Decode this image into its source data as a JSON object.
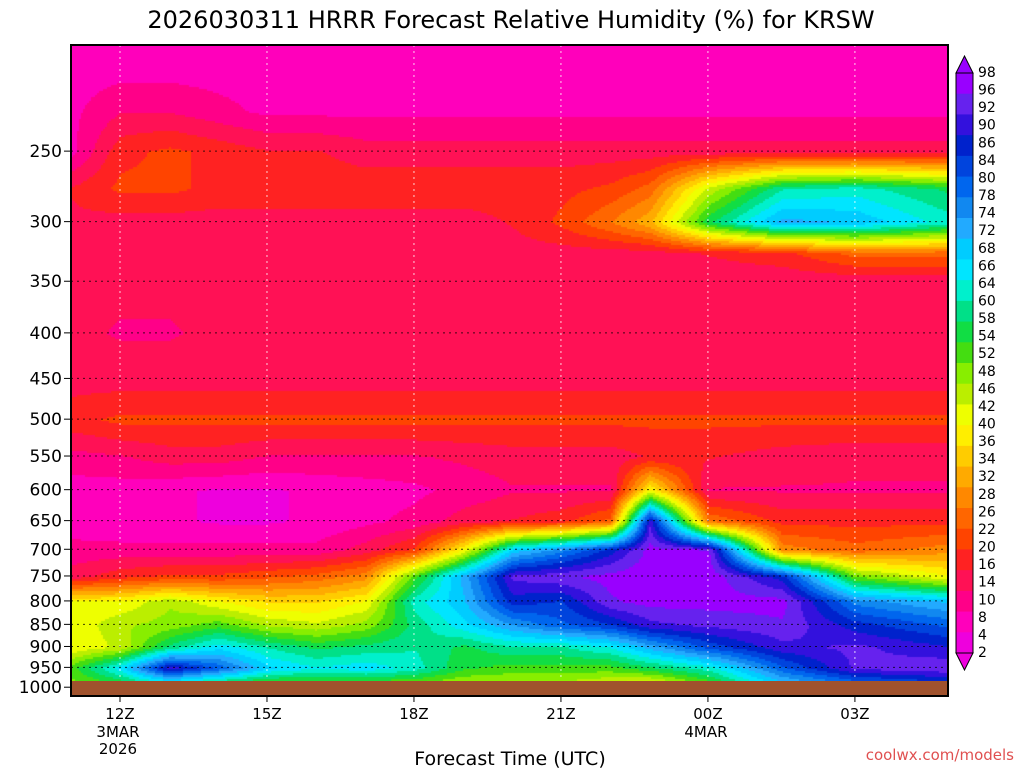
{
  "chart_data": {
    "type": "heatmap",
    "title": "2026030311 HRRR Forecast Relative Humidity (%) for KRSW",
    "xlabel": "Forecast Time (UTC)",
    "ylabel": "",
    "watermark": "coolwx.com/models",
    "x_ticks": [
      {
        "label": "12Z",
        "sub": [
          "3MAR",
          "2026"
        ],
        "hour": 12
      },
      {
        "label": "15Z",
        "sub": [],
        "hour": 15
      },
      {
        "label": "18Z",
        "sub": [],
        "hour": 18
      },
      {
        "label": "21Z",
        "sub": [],
        "hour": 21
      },
      {
        "label": "00Z",
        "sub": [
          "4MAR"
        ],
        "hour": 24
      },
      {
        "label": "03Z",
        "sub": [],
        "hour": 27
      }
    ],
    "xlim_hours": [
      11,
      28.9
    ],
    "y_ticks": [
      "250",
      "300",
      "350",
      "400",
      "450",
      "500",
      "550",
      "600",
      "650",
      "700",
      "750",
      "800",
      "850",
      "900",
      "950",
      "1000"
    ],
    "ylim_hpa": [
      1023,
      190
    ],
    "colorbar": {
      "levels": [
        "98",
        "96",
        "92",
        "90",
        "86",
        "84",
        "80",
        "78",
        "74",
        "72",
        "68",
        "66",
        "64",
        "60",
        "58",
        "54",
        "52",
        "48",
        "46",
        "42",
        "40",
        "36",
        "34",
        "32",
        "28",
        "26",
        "22",
        "20",
        "16",
        "14",
        "10",
        "8",
        "4",
        "2"
      ],
      "colors": [
        "#9900ff",
        "#6622ee",
        "#3311dd",
        "#0022cc",
        "#0044dd",
        "#0066ee",
        "#1188f0",
        "#22aaff",
        "#00ccff",
        "#00e5ff",
        "#00f0cc",
        "#00e088",
        "#11dd44",
        "#44dd11",
        "#88ee00",
        "#bbee00",
        "#eeff00",
        "#ffee00",
        "#ffcc00",
        "#ffaa00",
        "#ff8800",
        "#ff6600",
        "#ff4400",
        "#ff2222",
        "#ff1155",
        "#ff0088",
        "#ff00bb",
        "#ee00dd"
      ]
    },
    "humidity_profiles": {
      "pressure_levels": [
        200,
        225,
        250,
        275,
        300,
        325,
        350,
        400,
        450,
        500,
        550,
        600,
        650,
        700,
        750,
        800,
        850,
        900,
        950,
        1000,
        1020
      ],
      "series": [
        {
          "hour": 11.0,
          "values": [
            7,
            8,
            8,
            16,
            15,
            14,
            13,
            13,
            14,
            18,
            11,
            7,
            7,
            10,
            14,
            40,
            40,
            40,
            52,
            48,
            36
          ]
        },
        {
          "hour": 12.0,
          "values": [
            7,
            12,
            18,
            20,
            14,
            14,
            13,
            12,
            14,
            20,
            12,
            7,
            6,
            10,
            18,
            40,
            46,
            44,
            66,
            50,
            36
          ]
        },
        {
          "hour": 13.0,
          "values": [
            7,
            12,
            20,
            20,
            14,
            14,
            13,
            12,
            14,
            20,
            14,
            6,
            6,
            10,
            20,
            46,
            48,
            58,
            90,
            54,
            36
          ]
        },
        {
          "hour": 14.0,
          "values": [
            7,
            10,
            18,
            18,
            14,
            14,
            13,
            13,
            14,
            20,
            14,
            5,
            5,
            10,
            20,
            40,
            52,
            66,
            80,
            48,
            34
          ]
        },
        {
          "hour": 15.0,
          "values": [
            7,
            8,
            16,
            18,
            14,
            14,
            13,
            13,
            14,
            20,
            12,
            5,
            5,
            10,
            22,
            36,
            46,
            60,
            68,
            46,
            34
          ]
        },
        {
          "hour": 16.0,
          "values": [
            7,
            8,
            16,
            18,
            14,
            14,
            13,
            13,
            14,
            20,
            12,
            6,
            6,
            10,
            24,
            36,
            44,
            56,
            64,
            46,
            34
          ]
        },
        {
          "hour": 17.0,
          "values": [
            6,
            8,
            14,
            18,
            14,
            14,
            13,
            13,
            14,
            20,
            12,
            7,
            8,
            14,
            28,
            40,
            48,
            58,
            66,
            46,
            34
          ]
        },
        {
          "hour": 18.0,
          "values": [
            6,
            8,
            14,
            18,
            14,
            14,
            13,
            13,
            14,
            20,
            12,
            8,
            10,
            20,
            52,
            62,
            58,
            60,
            62,
            46,
            34
          ]
        },
        {
          "hour": 19.0,
          "values": [
            7,
            8,
            14,
            18,
            14,
            14,
            13,
            13,
            14,
            20,
            13,
            10,
            14,
            40,
            72,
            70,
            66,
            56,
            54,
            44,
            34
          ]
        },
        {
          "hour": 20.0,
          "values": [
            7,
            8,
            14,
            18,
            16,
            14,
            13,
            13,
            14,
            20,
            14,
            12,
            16,
            68,
            92,
            86,
            74,
            60,
            52,
            44,
            34
          ]
        },
        {
          "hour": 21.0,
          "values": [
            7,
            8,
            14,
            18,
            20,
            14,
            13,
            13,
            14,
            20,
            14,
            12,
            18,
            76,
            94,
            84,
            80,
            60,
            52,
            44,
            34
          ]
        },
        {
          "hour": 22.0,
          "values": [
            7,
            8,
            14,
            20,
            26,
            14,
            13,
            13,
            14,
            20,
            14,
            12,
            24,
            86,
            96,
            94,
            84,
            64,
            52,
            40,
            34
          ]
        },
        {
          "hour": 22.8,
          "values": [
            7,
            8,
            14,
            24,
            32,
            14,
            13,
            13,
            14,
            20,
            16,
            40,
            90,
            96,
            97,
            96,
            90,
            72,
            56,
            36,
            32
          ]
        },
        {
          "hour": 24.0,
          "values": [
            7,
            8,
            14,
            44,
            56,
            16,
            13,
            13,
            14,
            20,
            16,
            12,
            26,
            95,
            97,
            96,
            92,
            82,
            62,
            48,
            34
          ]
        },
        {
          "hour": 25.5,
          "values": [
            7,
            8,
            14,
            60,
            72,
            18,
            13,
            13,
            14,
            20,
            14,
            12,
            18,
            28,
            86,
            96,
            94,
            90,
            80,
            66,
            40
          ]
        },
        {
          "hour": 27.0,
          "values": [
            7,
            8,
            14,
            62,
            70,
            24,
            13,
            13,
            14,
            20,
            13,
            12,
            18,
            24,
            50,
            76,
            86,
            92,
            92,
            74,
            44
          ]
        },
        {
          "hour": 28.9,
          "values": [
            7,
            8,
            14,
            56,
            62,
            24,
            13,
            13,
            14,
            20,
            13,
            12,
            18,
            28,
            40,
            70,
            80,
            88,
            94,
            80,
            46
          ]
        }
      ]
    }
  }
}
